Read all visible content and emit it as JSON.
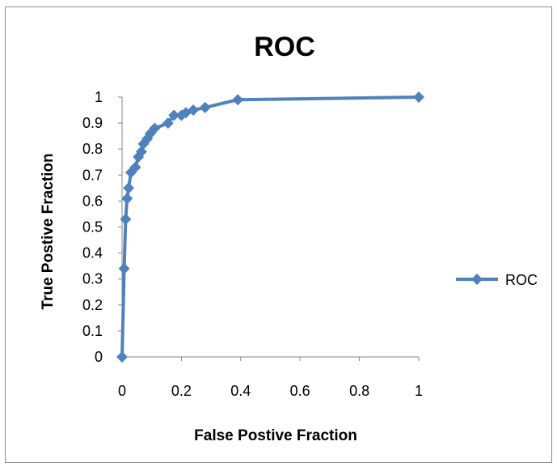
{
  "chart_data": {
    "type": "line",
    "title": "ROC",
    "xlabel": "False Postive Fraction",
    "ylabel": "True Postive Fraction",
    "xlim": [
      0,
      1
    ],
    "ylim": [
      0,
      1
    ],
    "x_ticks": [
      "0",
      "0.2",
      "0.4",
      "0.6",
      "0.8",
      "1"
    ],
    "y_ticks": [
      "0",
      "0.1",
      "0.2",
      "0.3",
      "0.4",
      "0.5",
      "0.6",
      "0.7",
      "0.8",
      "0.9",
      "1"
    ],
    "grid": false,
    "legend_position": "right",
    "series": [
      {
        "name": "ROC",
        "color": "#4f81bd",
        "marker": "diamond",
        "points": [
          [
            0.0,
            0.0
          ],
          [
            0.007,
            0.34
          ],
          [
            0.012,
            0.53
          ],
          [
            0.017,
            0.61
          ],
          [
            0.022,
            0.65
          ],
          [
            0.03,
            0.71
          ],
          [
            0.045,
            0.73
          ],
          [
            0.055,
            0.77
          ],
          [
            0.065,
            0.79
          ],
          [
            0.072,
            0.82
          ],
          [
            0.085,
            0.84
          ],
          [
            0.095,
            0.86
          ],
          [
            0.11,
            0.88
          ],
          [
            0.155,
            0.9
          ],
          [
            0.175,
            0.93
          ],
          [
            0.2,
            0.93
          ],
          [
            0.215,
            0.94
          ],
          [
            0.24,
            0.95
          ],
          [
            0.28,
            0.96
          ],
          [
            0.39,
            0.99
          ],
          [
            1.0,
            1.0
          ]
        ]
      }
    ]
  }
}
